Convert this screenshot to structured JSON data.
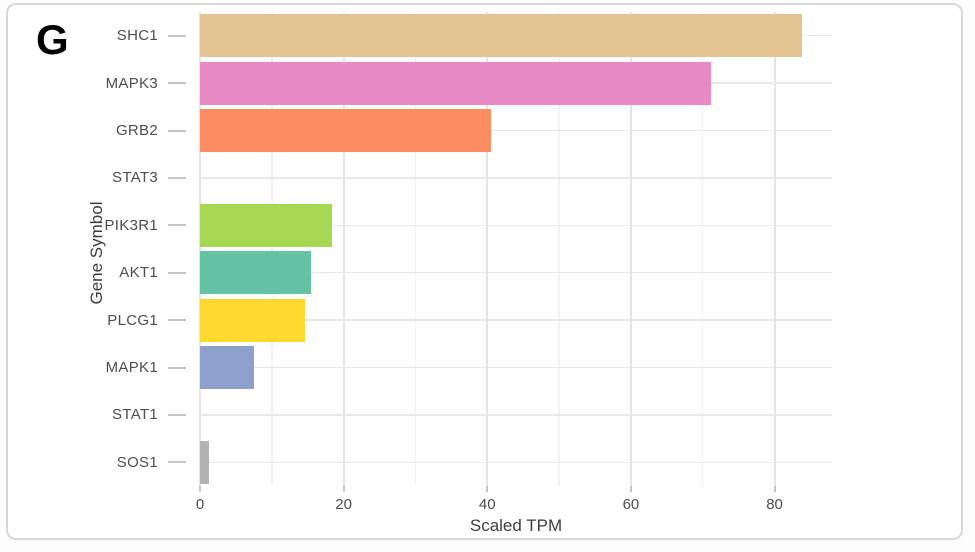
{
  "panel_label": "G",
  "chart_data": {
    "type": "bar",
    "orientation": "horizontal",
    "title": "",
    "xlabel": "Scaled TPM",
    "ylabel": "Gene Symbol",
    "categories": [
      "SHC1",
      "MAPK3",
      "GRB2",
      "STAT3",
      "PIK3R1",
      "AKT1",
      "PLCG1",
      "MAPK1",
      "STAT1",
      "SOS1"
    ],
    "values": [
      83.8,
      71.1,
      40.5,
      0,
      18.4,
      15.4,
      14.6,
      7.5,
      0,
      1.3
    ],
    "bar_colors": [
      "#E5C494",
      "#E78AC3",
      "#FC8D62",
      null,
      "#A6D854",
      "#66C2A5",
      "#FFD92F",
      "#8DA0CB",
      null,
      "#B3B3B3"
    ],
    "x_ticks": [
      0,
      20,
      40,
      60,
      80
    ],
    "x_minor_ticks": [
      10,
      30,
      50,
      70
    ],
    "xlim": [
      0,
      88
    ],
    "grid": "on",
    "legend": "none",
    "colors": {
      "grid_major": "#e4e4e4",
      "grid_minor": "#f2f2f2",
      "grid_row": "#e9e9e9",
      "tick_mark": "#c4c4c4",
      "axis_text": "#4d4d4d",
      "axis_title": "#3d3d3d",
      "panel_background": "#ffffff"
    }
  }
}
